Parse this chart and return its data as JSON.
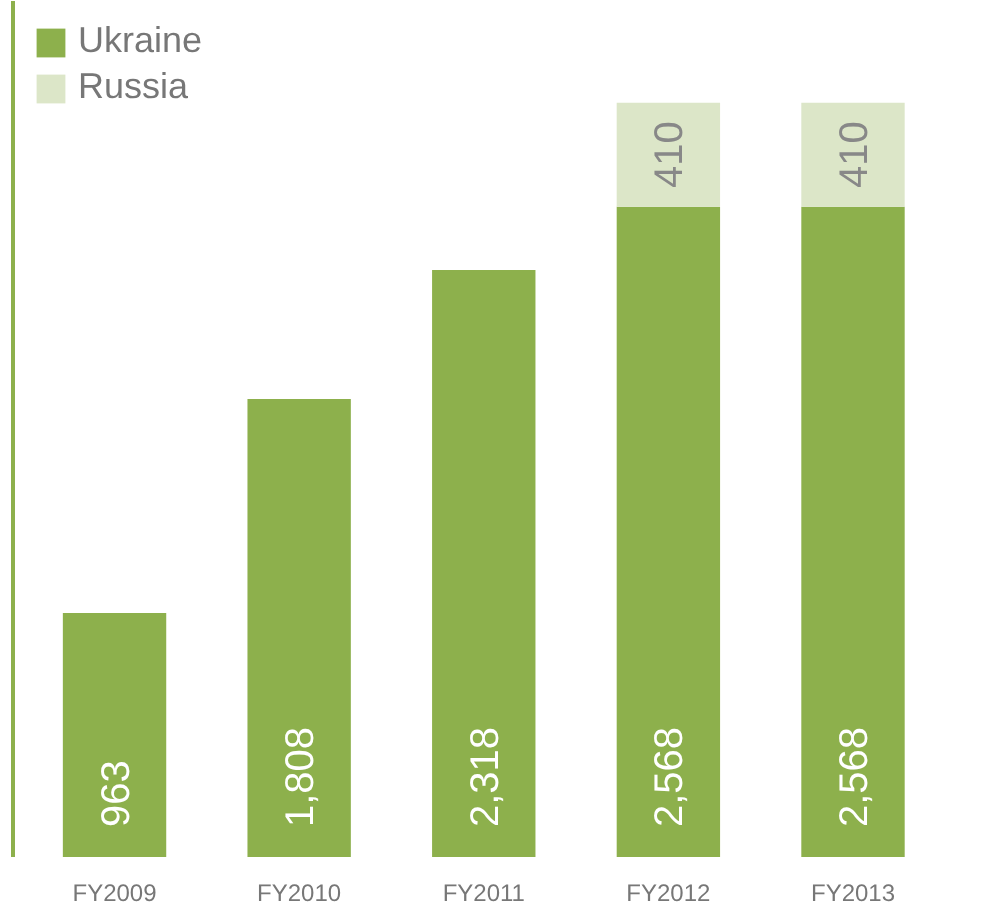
{
  "chart_data": {
    "type": "bar",
    "stacked": true,
    "categories": [
      "FY2009",
      "FY2010",
      "FY2011",
      "FY2012",
      "FY2013"
    ],
    "series": [
      {
        "name": "Ukraine",
        "color": "#8db04c",
        "values": [
          963,
          1808,
          2318,
          2568,
          2568
        ],
        "value_labels": [
          "963",
          "1,808",
          "2,318",
          "2,568",
          "2,568"
        ]
      },
      {
        "name": "Russia",
        "color": "#dce6c8",
        "values": [
          null,
          null,
          null,
          410,
          410
        ],
        "value_labels": [
          null,
          null,
          null,
          "410",
          "410"
        ]
      }
    ],
    "legend": "top left",
    "tick_labels": "x",
    "grid": false
  }
}
